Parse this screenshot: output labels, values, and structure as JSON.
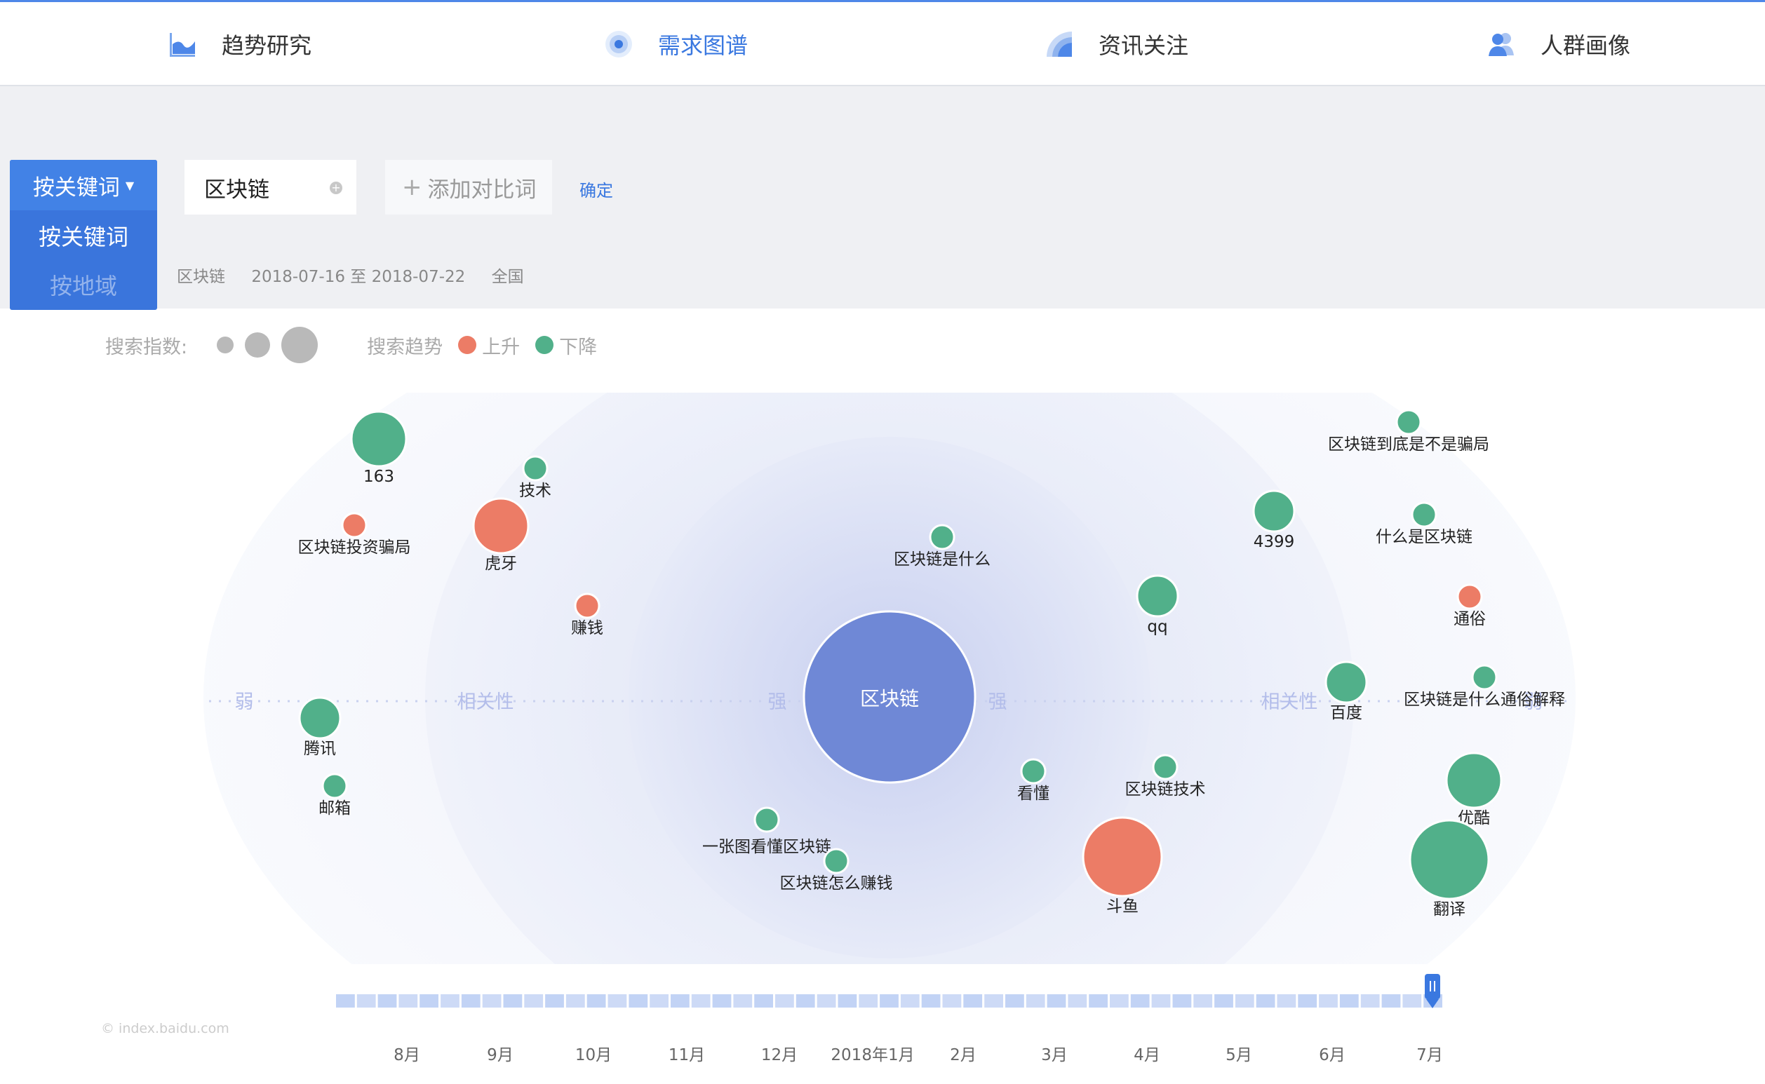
{
  "nav": [
    {
      "label": "趋势研究",
      "icon": "trend-chart-icon",
      "active": false
    },
    {
      "label": "需求图谱",
      "icon": "target-radar-icon",
      "active": true
    },
    {
      "label": "资讯关注",
      "icon": "broadcast-icon",
      "active": false
    },
    {
      "label": "人群画像",
      "icon": "people-icon",
      "active": false
    }
  ],
  "search": {
    "mode_selected": "按关键词",
    "mode_options": [
      "按关键词",
      "按地域"
    ],
    "keyword": "区块链",
    "add_compare_label": "添加对比词",
    "confirm_label": "确定"
  },
  "meta": {
    "keyword": "区块链",
    "date_range": "2018-07-16 至 2018-07-22",
    "region": "全国"
  },
  "legend": {
    "index_label": "搜索指数:",
    "trend_label": "搜索趋势",
    "up_label": "上升",
    "down_label": "下降",
    "up_color": "#ec7c66",
    "down_color": "#51b08a"
  },
  "axis_labels": {
    "weak": "弱",
    "relevance": "相关性",
    "strong": "强"
  },
  "center": {
    "label": "区块链",
    "color": "#6f88d6"
  },
  "nodes": [
    {
      "label": "163",
      "trend": "down",
      "size": "large"
    },
    {
      "label": "区块链投资骗局",
      "trend": "up",
      "size": "small"
    },
    {
      "label": "技术",
      "trend": "down",
      "size": "small"
    },
    {
      "label": "虎牙",
      "trend": "up",
      "size": "large"
    },
    {
      "label": "赚钱",
      "trend": "up",
      "size": "small"
    },
    {
      "label": "腾讯",
      "trend": "down",
      "size": "medium"
    },
    {
      "label": "邮箱",
      "trend": "down",
      "size": "small"
    },
    {
      "label": "区块链是什么",
      "trend": "down",
      "size": "small"
    },
    {
      "label": "一张图看懂区块链",
      "trend": "down",
      "size": "small"
    },
    {
      "label": "区块链怎么赚钱",
      "trend": "down",
      "size": "small"
    },
    {
      "label": "看懂",
      "trend": "down",
      "size": "small"
    },
    {
      "label": "区块链技术",
      "trend": "down",
      "size": "small"
    },
    {
      "label": "斗鱼",
      "trend": "up",
      "size": "xlarge"
    },
    {
      "label": "qq",
      "trend": "down",
      "size": "medium"
    },
    {
      "label": "4399",
      "trend": "down",
      "size": "medium"
    },
    {
      "label": "区块链到底是不是骗局",
      "trend": "down",
      "size": "small"
    },
    {
      "label": "什么是区块链",
      "trend": "down",
      "size": "small"
    },
    {
      "label": "通俗",
      "trend": "up",
      "size": "small"
    },
    {
      "label": "百度",
      "trend": "down",
      "size": "medium"
    },
    {
      "label": "区块链是什么通俗解释",
      "trend": "down",
      "size": "small"
    },
    {
      "label": "优酷",
      "trend": "down",
      "size": "large"
    },
    {
      "label": "翻译",
      "trend": "down",
      "size": "xlarge"
    }
  ],
  "timeline": {
    "months": [
      "8月",
      "9月",
      "10月",
      "11月",
      "12月",
      "2018年1月",
      "2月",
      "3月",
      "4月",
      "5月",
      "6月",
      "7月"
    ],
    "selected": "7月"
  },
  "copyright": "© index.baidu.com"
}
